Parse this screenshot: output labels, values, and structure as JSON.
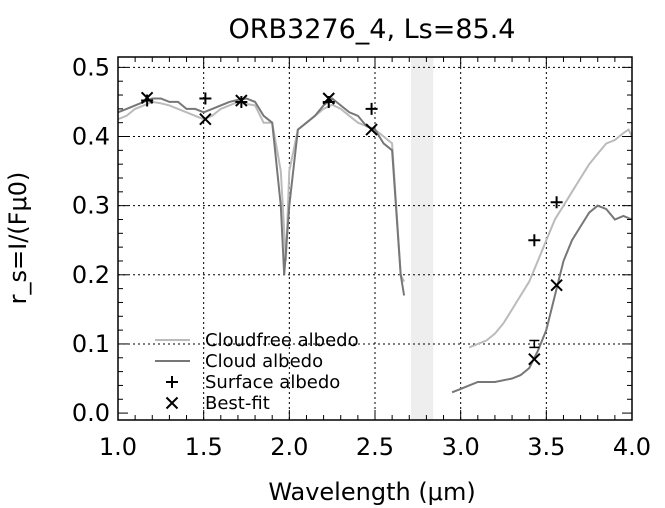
{
  "chart_data": {
    "type": "line",
    "title": "ORB3276_4, Ls=85.4",
    "xlabel": "Wavelength (μm)",
    "ylabel": "r_s=I/(Fμ0)",
    "xlim": [
      1.0,
      4.0
    ],
    "ylim": [
      -0.01,
      0.515
    ],
    "xticks": [
      1.0,
      1.5,
      2.0,
      2.5,
      3.0,
      3.5,
      4.0
    ],
    "xtick_labels": [
      "1.0",
      "1.5",
      "2.0",
      "2.5",
      "3.0",
      "3.5",
      "4.0"
    ],
    "yticks": [
      0.0,
      0.1,
      0.2,
      0.3,
      0.4,
      0.5
    ],
    "ytick_labels": [
      "0.0",
      "0.1",
      "0.2",
      "0.3",
      "0.4",
      "0.5"
    ],
    "grid": "dotted",
    "legend_position": "bottom-left",
    "shaded_band": [
      2.71,
      2.84
    ],
    "colors": {
      "cloudfree": "#bbbbbb",
      "cloud": "#777777",
      "markers": "#000000",
      "band": "#eeeeee"
    },
    "series": [
      {
        "name": "Cloudfree albedo",
        "style": "line",
        "segments": [
          [
            [
              1.0,
              0.425
            ],
            [
              1.05,
              0.43
            ],
            [
              1.1,
              0.44
            ],
            [
              1.15,
              0.445
            ],
            [
              1.2,
              0.45
            ],
            [
              1.25,
              0.448
            ],
            [
              1.3,
              0.445
            ],
            [
              1.35,
              0.44
            ],
            [
              1.4,
              0.435
            ],
            [
              1.45,
              0.43
            ],
            [
              1.5,
              0.425
            ],
            [
              1.55,
              0.43
            ],
            [
              1.6,
              0.44
            ],
            [
              1.65,
              0.445
            ],
            [
              1.7,
              0.45
            ],
            [
              1.75,
              0.447
            ],
            [
              1.8,
              0.445
            ],
            [
              1.85,
              0.42
            ],
            [
              1.9,
              0.42
            ],
            [
              1.95,
              0.35
            ],
            [
              1.98,
              0.22
            ],
            [
              2.0,
              0.35
            ],
            [
              2.05,
              0.41
            ],
            [
              2.1,
              0.42
            ],
            [
              2.15,
              0.43
            ],
            [
              2.2,
              0.44
            ],
            [
              2.25,
              0.446
            ],
            [
              2.3,
              0.44
            ],
            [
              2.35,
              0.43
            ],
            [
              2.4,
              0.42
            ],
            [
              2.45,
              0.415
            ],
            [
              2.5,
              0.41
            ],
            [
              2.55,
              0.4
            ],
            [
              2.6,
              0.39
            ],
            [
              2.65,
              0.2
            ],
            [
              2.67,
              0.19
            ]
          ],
          [
            [
              3.05,
              0.095
            ],
            [
              3.1,
              0.1
            ],
            [
              3.15,
              0.105
            ],
            [
              3.2,
              0.115
            ],
            [
              3.25,
              0.13
            ],
            [
              3.3,
              0.15
            ],
            [
              3.35,
              0.17
            ],
            [
              3.4,
              0.19
            ],
            [
              3.45,
              0.22
            ],
            [
              3.5,
              0.25
            ],
            [
              3.55,
              0.28
            ],
            [
              3.6,
              0.3
            ],
            [
              3.65,
              0.32
            ],
            [
              3.7,
              0.34
            ],
            [
              3.75,
              0.36
            ],
            [
              3.8,
              0.375
            ],
            [
              3.85,
              0.39
            ],
            [
              3.9,
              0.395
            ],
            [
              3.95,
              0.405
            ],
            [
              3.98,
              0.41
            ],
            [
              4.0,
              0.4
            ]
          ]
        ]
      },
      {
        "name": "Cloud albedo",
        "style": "line",
        "segments": [
          [
            [
              1.0,
              0.435
            ],
            [
              1.05,
              0.44
            ],
            [
              1.1,
              0.445
            ],
            [
              1.15,
              0.45
            ],
            [
              1.2,
              0.455
            ],
            [
              1.25,
              0.455
            ],
            [
              1.3,
              0.45
            ],
            [
              1.35,
              0.45
            ],
            [
              1.4,
              0.44
            ],
            [
              1.45,
              0.44
            ],
            [
              1.5,
              0.435
            ],
            [
              1.55,
              0.44
            ],
            [
              1.6,
              0.445
            ],
            [
              1.65,
              0.45
            ],
            [
              1.7,
              0.453
            ],
            [
              1.75,
              0.455
            ],
            [
              1.8,
              0.45
            ],
            [
              1.85,
              0.43
            ],
            [
              1.9,
              0.42
            ],
            [
              1.95,
              0.3
            ],
            [
              1.97,
              0.2
            ],
            [
              2.0,
              0.3
            ],
            [
              2.05,
              0.41
            ],
            [
              2.1,
              0.42
            ],
            [
              2.15,
              0.43
            ],
            [
              2.2,
              0.445
            ],
            [
              2.25,
              0.455
            ],
            [
              2.3,
              0.445
            ],
            [
              2.35,
              0.435
            ],
            [
              2.4,
              0.43
            ],
            [
              2.45,
              0.415
            ],
            [
              2.5,
              0.41
            ],
            [
              2.55,
              0.39
            ],
            [
              2.6,
              0.38
            ],
            [
              2.65,
              0.2
            ],
            [
              2.67,
              0.17
            ]
          ],
          [
            [
              2.95,
              0.03
            ],
            [
              3.0,
              0.035
            ],
            [
              3.05,
              0.04
            ],
            [
              3.1,
              0.045
            ],
            [
              3.2,
              0.045
            ],
            [
              3.3,
              0.05
            ],
            [
              3.35,
              0.055
            ],
            [
              3.4,
              0.065
            ],
            [
              3.45,
              0.09
            ],
            [
              3.5,
              0.12
            ],
            [
              3.55,
              0.17
            ],
            [
              3.6,
              0.22
            ],
            [
              3.65,
              0.25
            ],
            [
              3.7,
              0.27
            ],
            [
              3.75,
              0.29
            ],
            [
              3.8,
              0.3
            ],
            [
              3.85,
              0.295
            ],
            [
              3.9,
              0.28
            ],
            [
              3.95,
              0.285
            ],
            [
              4.0,
              0.28
            ]
          ]
        ]
      },
      {
        "name": "Surface albedo",
        "style": "marker-plus",
        "points": [
          [
            1.17,
            0.452
          ],
          [
            1.51,
            0.455
          ],
          [
            1.72,
            0.45
          ],
          [
            2.23,
            0.45
          ],
          [
            2.48,
            0.44
          ],
          [
            3.43,
            0.25
          ],
          [
            3.56,
            0.305
          ]
        ]
      },
      {
        "name": "Best-fit",
        "style": "marker-x",
        "points": [
          [
            1.17,
            0.456
          ],
          [
            1.51,
            0.425
          ],
          [
            1.72,
            0.452
          ],
          [
            2.23,
            0.455
          ],
          [
            2.48,
            0.41
          ],
          [
            3.43,
            0.078
          ],
          [
            3.56,
            0.185
          ]
        ]
      }
    ],
    "error_bars": [
      {
        "x": 3.43,
        "low": 0.095,
        "high": 0.105
      }
    ]
  }
}
